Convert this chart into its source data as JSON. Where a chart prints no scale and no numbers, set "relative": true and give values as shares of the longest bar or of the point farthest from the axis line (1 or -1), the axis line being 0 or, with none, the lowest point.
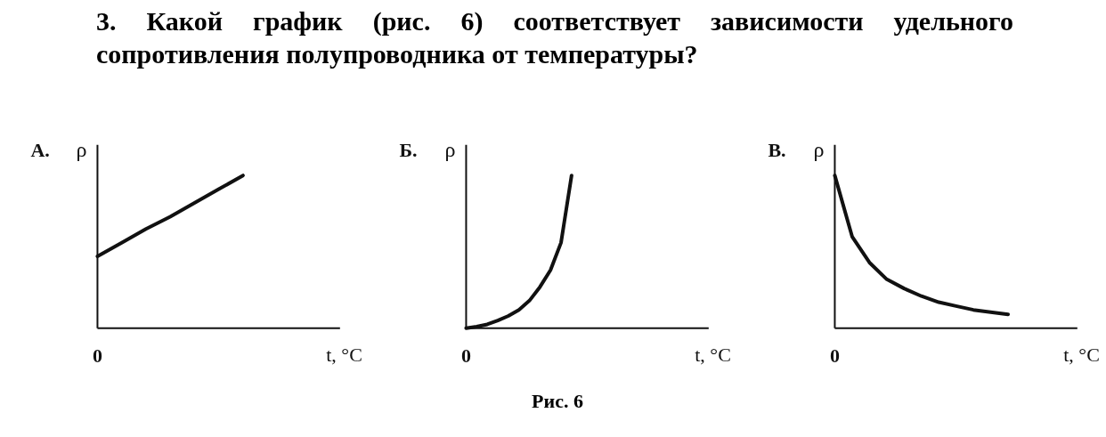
{
  "chart_data": [
    {
      "type": "line",
      "title": "А.",
      "ylabel": "ρ",
      "xlabel": "t, °C",
      "relative": true,
      "annotations": [
        "0",
        "3. Какой график (рис. 6) соответствует зависимости удельного сопротивления полупроводника от температуры?"
      ],
      "categories": [
        null,
        null,
        null,
        null,
        null,
        null,
        null,
        null,
        null,
        null,
        null
      ],
      "series": [
        {
          "color": "#111111",
          "values": [
            0.47,
            0.56,
            0.65,
            0.73,
            0.82,
            0.91,
            1,
            null,
            null,
            null,
            null
          ]
        }
      ]
    },
    {
      "type": "line",
      "title": "Б.",
      "ylabel": "ρ",
      "xlabel": "t, °C",
      "relative": true,
      "annotations": [
        "0",
        "Рис. 6"
      ],
      "categories": [
        null,
        null,
        null,
        null,
        null,
        null,
        null,
        null,
        null,
        null,
        null,
        null,
        null,
        null,
        null,
        null,
        null,
        null,
        null,
        null,
        null,
        null,
        null,
        null
      ],
      "series": [
        {
          "color": "#111111",
          "values": [
            0,
            0.01,
            0.025,
            0.05,
            0.08,
            0.12,
            0.18,
            0.27,
            0.38,
            0.56,
            1,
            null,
            null,
            null,
            null,
            null,
            null,
            null,
            null,
            null,
            null,
            null,
            null,
            null
          ]
        }
      ]
    },
    {
      "type": "line",
      "title": "В.",
      "ylabel": "ρ",
      "xlabel": "t, °C",
      "relative": true,
      "annotations": [
        "0"
      ],
      "categories": [
        null,
        null,
        null,
        null,
        null,
        null,
        null,
        null,
        null,
        null,
        null,
        null,
        null,
        null,
        null
      ],
      "series": [
        {
          "color": "#111111",
          "values": [
            1,
            0.6,
            0.43,
            0.32,
            0.26,
            0.21,
            0.17,
            0.145,
            0.12,
            0.105,
            0.09,
            null,
            null,
            null,
            null
          ]
        }
      ]
    }
  ]
}
